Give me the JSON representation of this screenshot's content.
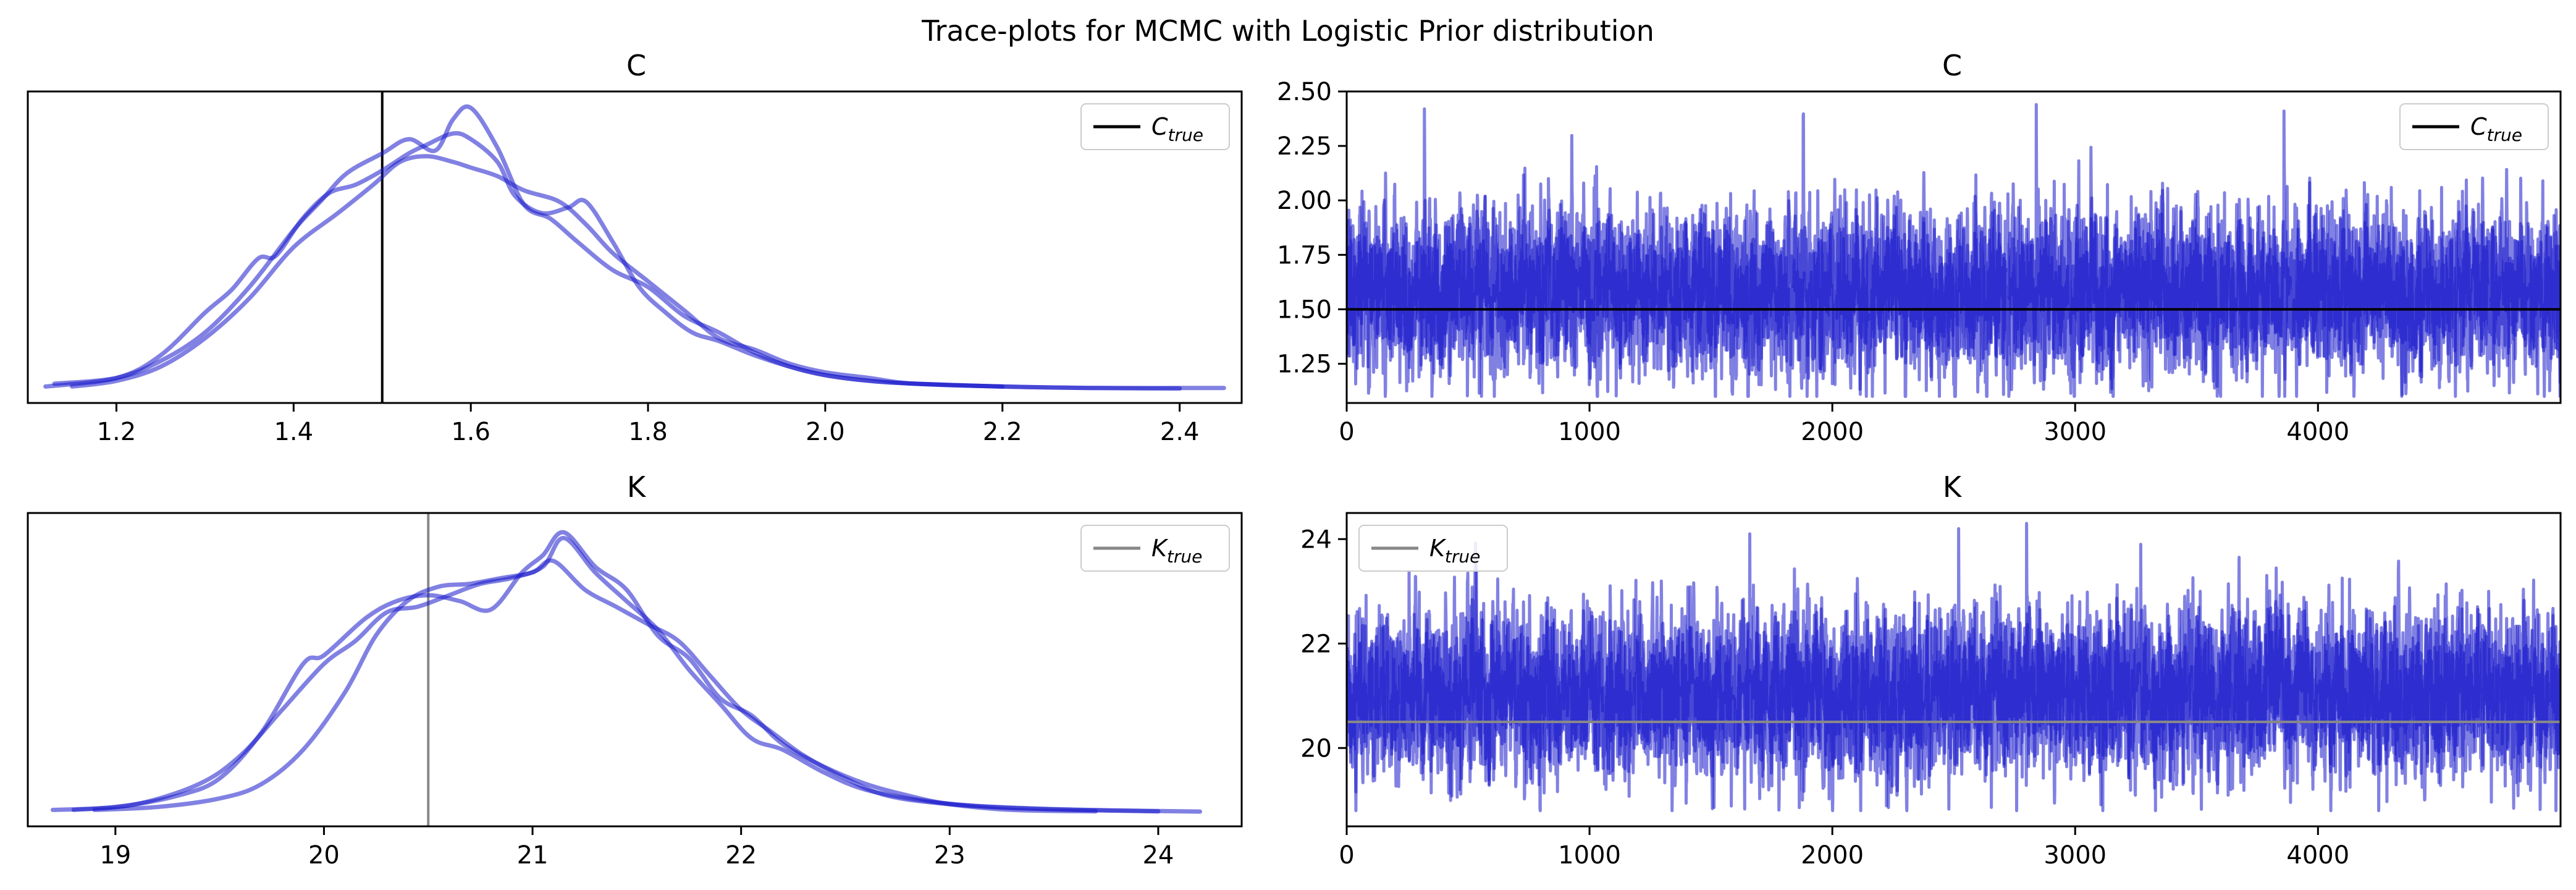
{
  "figure_title": "Trace-plots for MCMC with Logistic Prior distribution",
  "colors": {
    "chain": "#1a1acc",
    "truth_C": "#000000",
    "truth_K": "#888888"
  },
  "chart_data": [
    {
      "id": "C-density",
      "type": "line",
      "title": "C",
      "xlabel": "",
      "ylabel": "",
      "xlim": [
        1.1,
        2.47
      ],
      "x_ticks": [
        1.2,
        1.4,
        1.6,
        1.8,
        2.0,
        2.2,
        2.4
      ],
      "x_tick_labels": [
        "1.2",
        "1.4",
        "1.6",
        "1.8",
        "2.0",
        "2.2",
        "2.4"
      ],
      "y_ticks": [],
      "legend": {
        "label": "C",
        "subscript": "true",
        "position": "top-right"
      },
      "reference_line": {
        "orientation": "vertical",
        "value": 1.5,
        "color": "#000000"
      },
      "series": [
        {
          "x": [
            1.12,
            1.2,
            1.25,
            1.3,
            1.33,
            1.36,
            1.38,
            1.41,
            1.44,
            1.47,
            1.5,
            1.53,
            1.55,
            1.58,
            1.6,
            1.63,
            1.65,
            1.68,
            1.71,
            1.73,
            1.76,
            1.79,
            1.82,
            1.85,
            1.88,
            1.92,
            1.96,
            2.0,
            2.05,
            2.1,
            2.2
          ],
          "y": [
            0.01,
            0.04,
            0.12,
            0.27,
            0.35,
            0.46,
            0.47,
            0.6,
            0.69,
            0.72,
            0.77,
            0.83,
            0.86,
            0.9,
            0.88,
            0.8,
            0.68,
            0.62,
            0.64,
            0.66,
            0.52,
            0.36,
            0.27,
            0.2,
            0.17,
            0.12,
            0.08,
            0.05,
            0.03,
            0.02,
            0.01
          ]
        },
        {
          "x": [
            1.13,
            1.2,
            1.25,
            1.3,
            1.35,
            1.4,
            1.43,
            1.46,
            1.5,
            1.53,
            1.56,
            1.58,
            1.6,
            1.63,
            1.66,
            1.69,
            1.72,
            1.76,
            1.8,
            1.84,
            1.88,
            1.92,
            1.96,
            2.0,
            2.05,
            2.1,
            2.2,
            2.3,
            2.45
          ],
          "y": [
            0.02,
            0.04,
            0.1,
            0.2,
            0.36,
            0.56,
            0.66,
            0.76,
            0.83,
            0.88,
            0.84,
            0.95,
            0.99,
            0.85,
            0.65,
            0.6,
            0.52,
            0.42,
            0.36,
            0.26,
            0.2,
            0.13,
            0.08,
            0.05,
            0.03,
            0.02,
            0.01,
            0.005,
            0.005
          ]
        },
        {
          "x": [
            1.15,
            1.2,
            1.25,
            1.3,
            1.35,
            1.4,
            1.45,
            1.49,
            1.52,
            1.55,
            1.58,
            1.6,
            1.63,
            1.66,
            1.7,
            1.73,
            1.76,
            1.8,
            1.84,
            1.88,
            1.92,
            1.96,
            2.0,
            2.05,
            2.1,
            2.2,
            2.3,
            2.4
          ],
          "y": [
            0.01,
            0.03,
            0.08,
            0.18,
            0.32,
            0.5,
            0.62,
            0.72,
            0.8,
            0.82,
            0.8,
            0.78,
            0.75,
            0.7,
            0.66,
            0.58,
            0.48,
            0.38,
            0.28,
            0.18,
            0.14,
            0.09,
            0.06,
            0.04,
            0.02,
            0.01,
            0.005,
            0.003
          ]
        }
      ]
    },
    {
      "id": "C-trace",
      "type": "line",
      "title": "C",
      "xlabel": "",
      "ylabel": "",
      "xlim": [
        0,
        4999
      ],
      "ylim": [
        1.07,
        2.5
      ],
      "x_ticks": [
        0,
        1000,
        2000,
        3000,
        4000
      ],
      "x_tick_labels": [
        "0",
        "1000",
        "2000",
        "3000",
        "4000"
      ],
      "y_ticks": [
        1.25,
        1.5,
        1.75,
        2.0,
        2.25,
        2.5
      ],
      "y_tick_labels": [
        "1.25",
        "1.50",
        "1.75",
        "2.00",
        "2.25",
        "2.50"
      ],
      "legend": {
        "label": "C",
        "subscript": "true",
        "position": "top-right"
      },
      "reference_line": {
        "orientation": "horizontal",
        "value": 1.5,
        "color": "#000000"
      },
      "trace": {
        "chains": 3,
        "draws": 5000,
        "mean": 1.58,
        "sd": 0.17,
        "min": 1.1,
        "max": 2.44,
        "peaks": [
          [
            320,
            2.42
          ],
          [
            1880,
            2.39
          ],
          [
            2840,
            2.44
          ],
          [
            3860,
            2.41
          ],
          [
            2300,
            1.1
          ],
          [
            4500,
            1.14
          ]
        ]
      }
    },
    {
      "id": "K-density",
      "type": "line",
      "title": "K",
      "xlabel": "",
      "ylabel": "",
      "xlim": [
        18.58,
        24.4
      ],
      "x_ticks": [
        19,
        20,
        21,
        22,
        23,
        24
      ],
      "x_tick_labels": [
        "19",
        "20",
        "21",
        "22",
        "23",
        "24"
      ],
      "y_ticks": [],
      "legend": {
        "label": "K",
        "subscript": "true",
        "position": "top-right"
      },
      "reference_line": {
        "orientation": "vertical",
        "value": 20.5,
        "color": "#888888"
      },
      "series": [
        {
          "x": [
            18.7,
            19.0,
            19.3,
            19.5,
            19.7,
            19.9,
            20.0,
            20.2,
            20.35,
            20.5,
            20.65,
            20.8,
            20.95,
            21.05,
            21.15,
            21.3,
            21.45,
            21.6,
            21.75,
            21.9,
            22.05,
            22.2,
            22.4,
            22.6,
            22.8,
            23.0,
            23.3,
            23.7
          ],
          "y": [
            0.01,
            0.02,
            0.06,
            0.12,
            0.28,
            0.52,
            0.55,
            0.68,
            0.74,
            0.76,
            0.74,
            0.71,
            0.84,
            0.9,
            0.98,
            0.86,
            0.78,
            0.62,
            0.54,
            0.4,
            0.34,
            0.24,
            0.16,
            0.1,
            0.06,
            0.03,
            0.01,
            0.005
          ]
        },
        {
          "x": [
            18.8,
            19.1,
            19.4,
            19.6,
            19.8,
            20.0,
            20.15,
            20.3,
            20.45,
            20.6,
            20.75,
            20.9,
            21.05,
            21.15,
            21.3,
            21.45,
            21.6,
            21.75,
            21.9,
            22.05,
            22.2,
            22.4,
            22.6,
            22.9,
            23.2,
            23.6,
            24.0
          ],
          "y": [
            0.01,
            0.03,
            0.1,
            0.2,
            0.36,
            0.52,
            0.6,
            0.7,
            0.72,
            0.76,
            0.8,
            0.82,
            0.86,
            0.96,
            0.84,
            0.74,
            0.64,
            0.5,
            0.38,
            0.26,
            0.22,
            0.14,
            0.08,
            0.04,
            0.02,
            0.01,
            0.005
          ]
        },
        {
          "x": [
            18.9,
            19.2,
            19.5,
            19.7,
            19.9,
            20.1,
            20.25,
            20.4,
            20.55,
            20.7,
            20.85,
            21.0,
            21.1,
            21.25,
            21.4,
            21.55,
            21.7,
            21.85,
            22.0,
            22.15,
            22.3,
            22.5,
            22.7,
            23.0,
            23.4,
            23.8,
            24.2
          ],
          "y": [
            0.01,
            0.02,
            0.05,
            0.1,
            0.22,
            0.42,
            0.62,
            0.74,
            0.79,
            0.8,
            0.82,
            0.84,
            0.88,
            0.78,
            0.72,
            0.66,
            0.6,
            0.48,
            0.36,
            0.28,
            0.2,
            0.12,
            0.06,
            0.03,
            0.015,
            0.008,
            0.004
          ]
        }
      ]
    },
    {
      "id": "K-trace",
      "type": "line",
      "title": "K",
      "xlabel": "",
      "ylabel": "",
      "xlim": [
        0,
        4999
      ],
      "ylim": [
        18.5,
        24.5
      ],
      "x_ticks": [
        0,
        1000,
        2000,
        3000,
        4000
      ],
      "x_tick_labels": [
        "0",
        "1000",
        "2000",
        "3000",
        "4000"
      ],
      "y_ticks": [
        20,
        22,
        24
      ],
      "y_tick_labels": [
        "20",
        "22",
        "24"
      ],
      "legend": {
        "label": "K",
        "subscript": "true",
        "position": "top-left"
      },
      "reference_line": {
        "orientation": "horizontal",
        "value": 20.5,
        "color": "#888888"
      },
      "trace": {
        "chains": 3,
        "draws": 5000,
        "mean": 21.05,
        "sd": 0.72,
        "min": 18.8,
        "max": 24.3,
        "peaks": [
          [
            1660,
            24.1
          ],
          [
            2520,
            24.2
          ],
          [
            2800,
            24.3
          ],
          [
            3270,
            23.9
          ],
          [
            4250,
            18.8
          ],
          [
            4980,
            18.8
          ]
        ]
      }
    }
  ]
}
